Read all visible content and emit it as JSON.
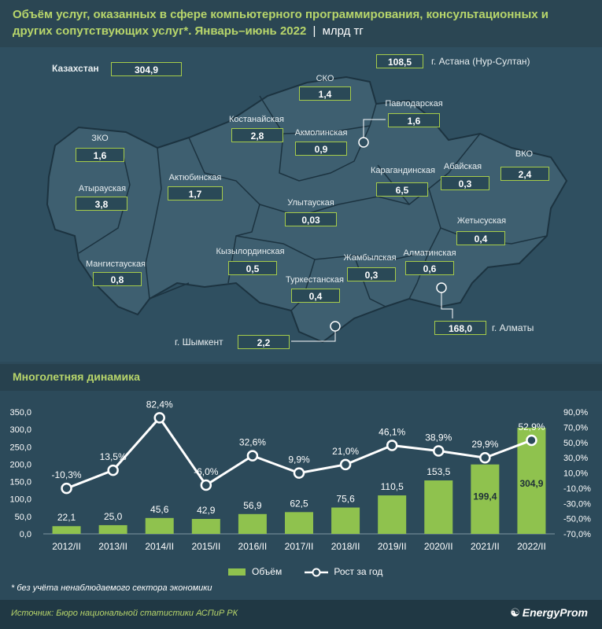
{
  "header": {
    "title": "Объём услуг, оказанных в сфере компьютерного программирования, консультационных и других сопутствующих услуг*. Январь–июнь 2022",
    "separator": "|",
    "unit": "млрд тг"
  },
  "map": {
    "total_label": "Казахстан",
    "total_value": "304,9",
    "regions": [
      {
        "name": "СКО",
        "value": "1,4"
      },
      {
        "name": "Павлодарская",
        "value": "1,6"
      },
      {
        "name": "Костанайская",
        "value": "2,8"
      },
      {
        "name": "Акмолинская",
        "value": "0,9"
      },
      {
        "name": "ЗКО",
        "value": "1,6"
      },
      {
        "name": "Актюбинская",
        "value": "1,7"
      },
      {
        "name": "Атырауская",
        "value": "3,8"
      },
      {
        "name": "Карагандинская",
        "value": "6,5"
      },
      {
        "name": "Абайская",
        "value": "0,3"
      },
      {
        "name": "ВКО",
        "value": "2,4"
      },
      {
        "name": "Улытауская",
        "value": "0,03"
      },
      {
        "name": "Жетысуская",
        "value": "0,4"
      },
      {
        "name": "Мангистауская",
        "value": "0,8"
      },
      {
        "name": "Кызылординская",
        "value": "0,5"
      },
      {
        "name": "Жамбылская",
        "value": "0,3"
      },
      {
        "name": "Алматинская",
        "value": "0,6"
      },
      {
        "name": "Туркестанская",
        "value": "0,4"
      }
    ],
    "cities": [
      {
        "name": "г. Астана (Нур-Султан)",
        "value": "108,5"
      },
      {
        "name": "г. Алматы",
        "value": "168,0"
      },
      {
        "name": "г. Шымкент",
        "value": "2,2"
      }
    ]
  },
  "section_title": "Многолетняя динамика",
  "chart_data": {
    "type": "bar",
    "categories": [
      "2012/II",
      "2013/II",
      "2014/II",
      "2015/II",
      "2016/II",
      "2017/II",
      "2018/II",
      "2019/II",
      "2020/II",
      "2021/II",
      "2022/II"
    ],
    "series": [
      {
        "name": "Объём",
        "type": "bar",
        "axis": "left",
        "values": [
          22.1,
          25.0,
          45.6,
          42.9,
          56.9,
          62.5,
          75.6,
          110.5,
          153.5,
          199.4,
          304.9
        ],
        "labels": [
          "22,1",
          "25,0",
          "45,6",
          "42,9",
          "56,9",
          "62,5",
          "75,6",
          "110,5",
          "153,5",
          "199,4",
          "304,9"
        ]
      },
      {
        "name": "Рост за год",
        "type": "line",
        "axis": "right",
        "values": [
          -10.3,
          13.5,
          82.4,
          -6.0,
          32.6,
          9.9,
          21.0,
          46.1,
          38.9,
          29.9,
          52.9
        ],
        "labels": [
          "-10,3%",
          "13,5%",
          "82,4%",
          "-6,0%",
          "32,6%",
          "9,9%",
          "21,0%",
          "46,1%",
          "38,9%",
          "29,9%",
          "52,9%"
        ]
      }
    ],
    "left_axis": {
      "min": 0,
      "max": 350,
      "ticks": [
        "0,0",
        "50,0",
        "100,0",
        "150,0",
        "200,0",
        "250,0",
        "300,0",
        "350,0"
      ]
    },
    "right_axis": {
      "min": -70,
      "max": 90,
      "ticks": [
        "-70,0%",
        "-50,0%",
        "-30,0%",
        "-10,0%",
        "10,0%",
        "30,0%",
        "50,0%",
        "70,0%",
        "90,0%"
      ]
    },
    "colors": {
      "bar": "#8fc24e",
      "line": "#ffffff"
    },
    "legend": [
      "Объём",
      "Рост за год"
    ]
  },
  "note": "* без учёта ненаблюдаемого сектора экономики",
  "source": "Источник: Бюро национальной статистики АСПиР РК",
  "logo": "EnergyProm"
}
